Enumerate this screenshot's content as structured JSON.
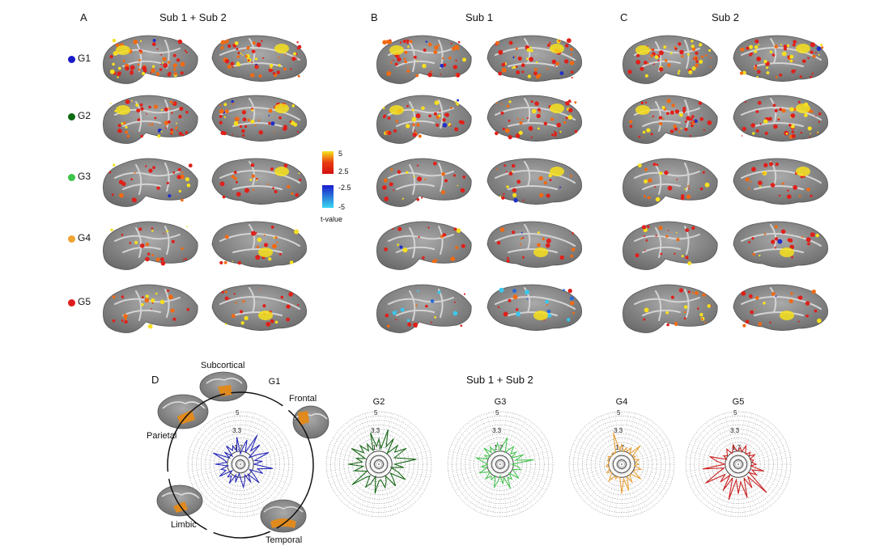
{
  "panels": [
    {
      "letter": "A",
      "title": "Sub 1 + Sub 2"
    },
    {
      "letter": "B",
      "title": "Sub 1"
    },
    {
      "letter": "C",
      "title": "Sub 2"
    }
  ],
  "groups": [
    {
      "label": "G1",
      "color": "#1a1ac8"
    },
    {
      "label": "G2",
      "color": "#0e6b14"
    },
    {
      "label": "G3",
      "color": "#3dc44a"
    },
    {
      "label": "G4",
      "color": "#f0a431"
    },
    {
      "label": "G5",
      "color": "#e01d1d"
    }
  ],
  "colorbar": {
    "pos_max": "5",
    "pos_min": "2.5",
    "neg_min": "-2.5",
    "neg_max": "-5",
    "label": "t-value"
  },
  "panel_d": {
    "letter": "D",
    "title": "Sub 1 + Sub 2",
    "lobes": [
      "Subcortical",
      "Frontal",
      "Parietal",
      "Limbic",
      "Temporal"
    ],
    "ring_labels": [
      "5",
      "3.3",
      "1.7"
    ]
  },
  "chart_data": [
    {
      "type": "radar",
      "title": "G1",
      "color": "#2a2ab8",
      "values": [
        1.0,
        1.5,
        2.4,
        1.2,
        3.2,
        1.6,
        2.6,
        1.0,
        1.8,
        2.9,
        1.4,
        2.1,
        1.3,
        3.1,
        1.7,
        2.3,
        1.0,
        1.6,
        2.5,
        1.2,
        2.0,
        1.1,
        1.6,
        2.2,
        1.3,
        0.9,
        1.8,
        1.1,
        2.1,
        1.4,
        1.7,
        1.0,
        2.3,
        1.5,
        1.9,
        1.2,
        2.4,
        1.3,
        1.6,
        2.8,
        1.2,
        1.9,
        1.1,
        2.2,
        1.5,
        1.9,
        1.3,
        2.6
      ]
    },
    {
      "type": "radar",
      "title": "G2",
      "color": "#1a6a1a",
      "values": [
        2.4,
        1.5,
        3.4,
        1.8,
        2.8,
        1.3,
        2.5,
        1.9,
        3.0,
        1.6,
        2.2,
        3.6,
        1.5,
        2.4,
        1.2,
        2.0,
        2.9,
        1.4,
        1.9,
        2.6,
        1.3,
        1.8,
        2.3,
        1.5,
        1.6,
        2.8,
        1.2,
        2.0,
        2.5,
        1.4,
        1.8,
        3.2,
        1.3,
        1.7,
        2.4,
        1.5,
        2.9,
        1.6,
        2.2,
        1.4,
        3.0,
        1.8,
        2.5,
        1.6,
        2.2,
        1.4,
        3.1,
        1.7
      ]
    },
    {
      "type": "radar",
      "title": "G3",
      "color": "#4cc455",
      "values": [
        1.3,
        1.8,
        2.6,
        1.2,
        1.6,
        2.1,
        1.4,
        1.9,
        1.2,
        2.4,
        1.5,
        3.2,
        1.1,
        1.7,
        2.0,
        1.3,
        1.6,
        2.2,
        1.2,
        1.8,
        1.4,
        2.5,
        1.3,
        1.9,
        1.1,
        1.6,
        2.3,
        1.2,
        1.7,
        1.4,
        2.0,
        1.2,
        1.5,
        2.1,
        1.3,
        1.8,
        1.2,
        1.6,
        2.4,
        1.3,
        1.7,
        1.2,
        2.2,
        1.4,
        1.9,
        1.3,
        1.6,
        2.0
      ]
    },
    {
      "type": "radar",
      "title": "G4",
      "color": "#e8a23a",
      "values": [
        1.9,
        1.2,
        1.6,
        1.3,
        1.8,
        1.2,
        2.5,
        1.3,
        1.5,
        1.2,
        1.7,
        1.3,
        1.6,
        1.2,
        1.9,
        1.4,
        1.3,
        2.3,
        1.4,
        1.2,
        2.0,
        1.3,
        2.6,
        1.4,
        2.8,
        1.3,
        1.2,
        1.5,
        1.3,
        2.0,
        1.4,
        1.2,
        1.6,
        1.3,
        1.2,
        1.5,
        1.3,
        1.2,
        1.4,
        1.3,
        1.5,
        1.2,
        1.3,
        1.4,
        1.2,
        1.6,
        3.1,
        1.3
      ]
    },
    {
      "type": "radar",
      "title": "G5",
      "color": "#cc2222",
      "values": [
        1.3,
        1.6,
        1.2,
        1.9,
        1.4,
        1.2,
        1.6,
        1.3,
        1.8,
        1.2,
        1.5,
        1.3,
        1.7,
        1.2,
        2.5,
        1.4,
        2.0,
        1.3,
        3.8,
        1.5,
        2.6,
        1.4,
        3.3,
        1.7,
        2.8,
        1.5,
        3.5,
        1.4,
        2.9,
        1.3,
        2.4,
        1.6,
        3.6,
        2.1,
        1.4,
        3.4,
        1.3,
        2.0,
        2.8,
        1.2,
        1.6,
        1.3,
        1.5,
        1.8,
        1.2,
        1.4,
        1.9,
        1.3
      ]
    }
  ]
}
